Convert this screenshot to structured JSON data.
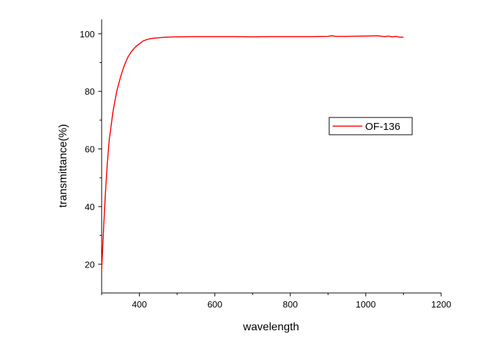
{
  "chart_data": {
    "type": "line",
    "title": "",
    "xlabel": "wavelength",
    "ylabel": "transmittance(%)",
    "xlim": [
      300,
      1200
    ],
    "ylim": [
      10,
      105
    ],
    "x_ticks": [
      400,
      600,
      800,
      1000,
      1200
    ],
    "y_ticks": [
      20,
      40,
      60,
      80,
      100
    ],
    "x_tick_labels": [
      "400",
      "600",
      "800",
      "1000",
      "1200"
    ],
    "y_tick_labels": [
      "20",
      "40",
      "60",
      "80",
      "100"
    ],
    "grid": false,
    "legend": {
      "position": "right",
      "visible": true
    },
    "series": [
      {
        "name": "OF-136",
        "color": "#ff0000",
        "x": [
          300,
          305,
          310,
          315,
          320,
          330,
          340,
          350,
          360,
          370,
          380,
          390,
          400,
          410,
          420,
          430,
          440,
          450,
          470,
          500,
          550,
          600,
          650,
          700,
          750,
          800,
          850,
          900,
          910,
          920,
          950,
          1000,
          1030,
          1050,
          1060,
          1070,
          1080,
          1090,
          1100
        ],
        "y": [
          18,
          32,
          45,
          55,
          63,
          73,
          80,
          85,
          89,
          92,
          94,
          95.5,
          96.5,
          97.5,
          98.0,
          98.3,
          98.5,
          98.6,
          98.8,
          98.9,
          99.0,
          99.0,
          99.0,
          98.9,
          99.0,
          99.0,
          99.0,
          99.1,
          99.3,
          99.1,
          99.1,
          99.2,
          99.3,
          99.0,
          99.2,
          98.9,
          99.1,
          98.8,
          98.8
        ]
      }
    ]
  }
}
